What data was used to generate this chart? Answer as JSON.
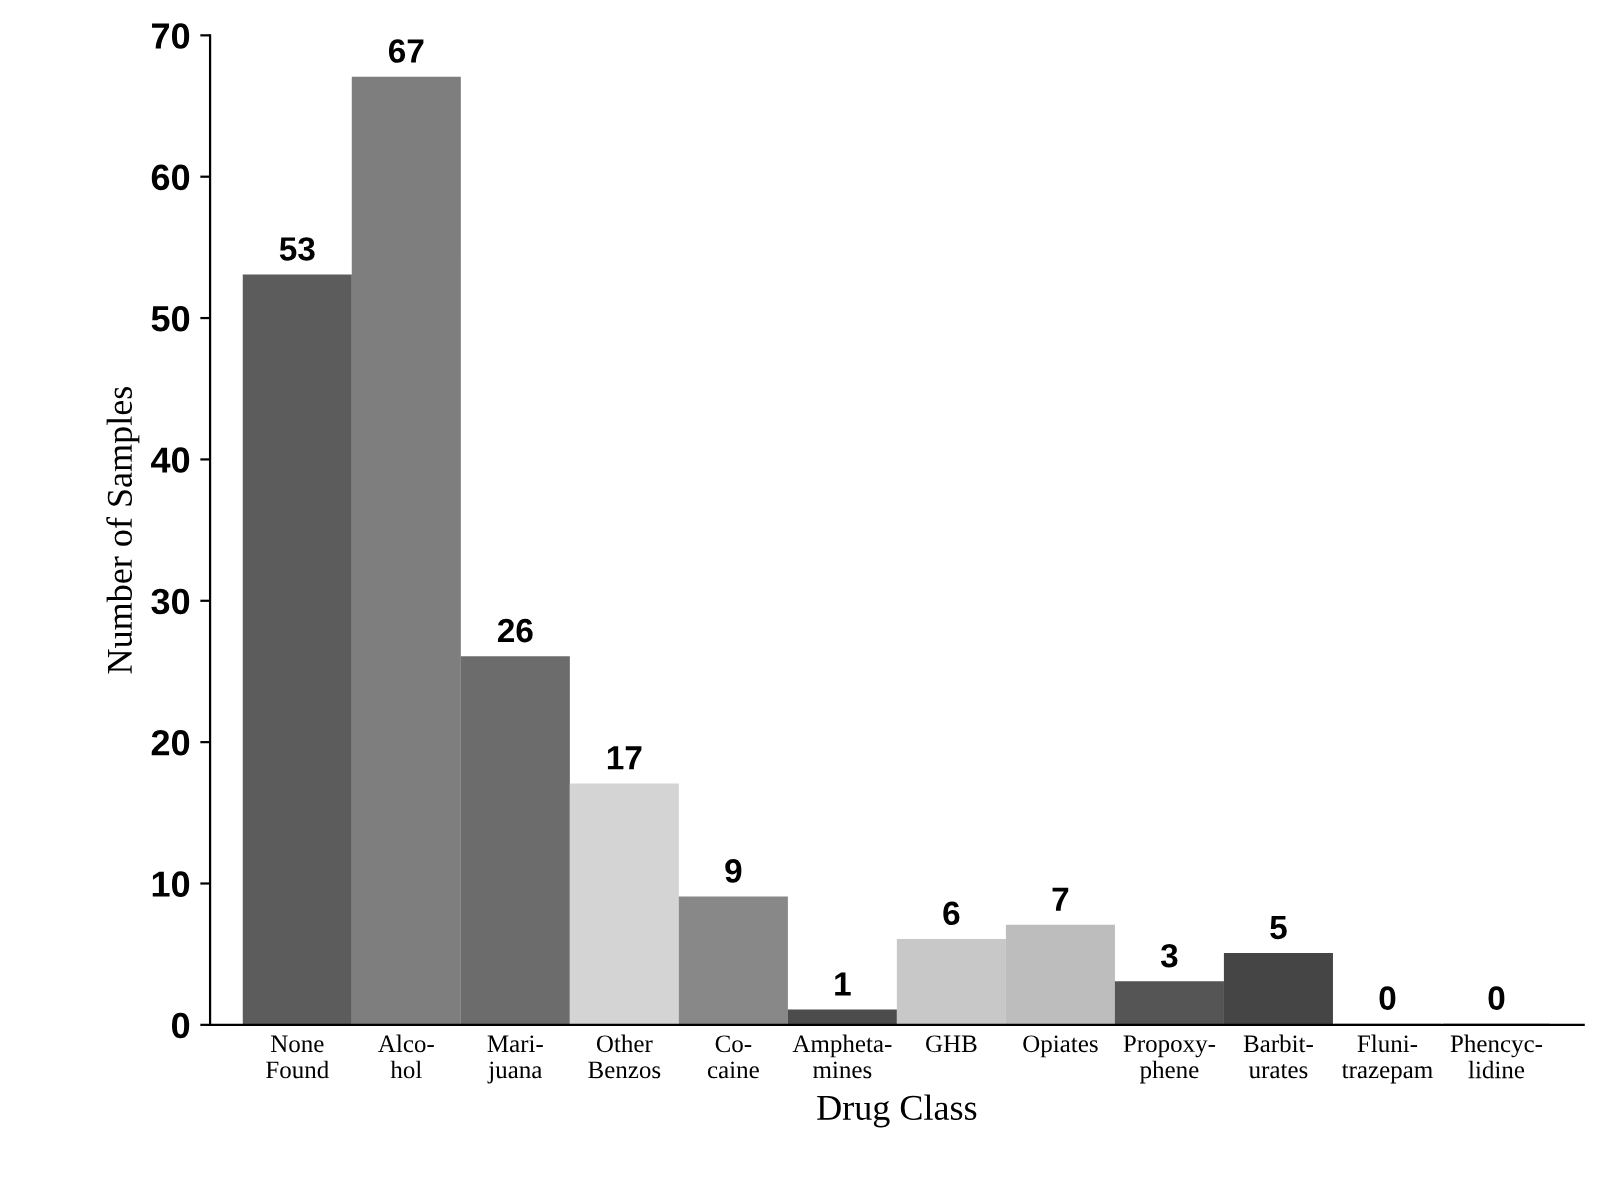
{
  "chart_data": {
    "type": "bar",
    "xlabel": "Drug Class",
    "ylabel": "Number of Samples",
    "categories": [
      "None\nFound",
      "Alco-\nhol",
      "Mari-\njuana",
      "Other\nBenzos",
      "Co-\ncaine",
      "Ampheta-\nmines",
      "GHB",
      "Opiates",
      "Propoxy-\nphene",
      "Barbit-\nurates",
      "Fluni-\ntrazepam",
      "Phencyc-\nlidine"
    ],
    "values": [
      53,
      67,
      26,
      17,
      9,
      1,
      6,
      7,
      3,
      5,
      0,
      0
    ],
    "colors": [
      "#5c5c5c",
      "#7e7e7e",
      "#6c6c6c",
      "#d4d4d4",
      "#888888",
      "#4c4c4c",
      "#c8c8c8",
      "#bdbdbd",
      "#555555",
      "#454545",
      "#8c8c8c",
      "#585858"
    ],
    "ylim": [
      0,
      70
    ],
    "yticks": [
      0,
      10,
      20,
      30,
      40,
      50,
      60,
      70
    ],
    "data_labels": true,
    "grid": false
  }
}
